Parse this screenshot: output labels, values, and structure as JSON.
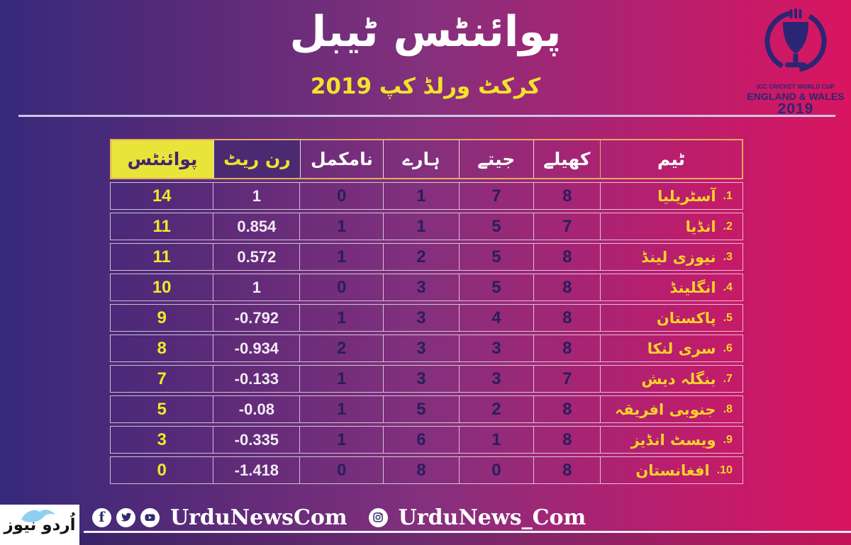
{
  "page": {
    "title": "پوائنٹس ٹیبل",
    "subtitle": "کرکٹ ورلڈ کپ 2019"
  },
  "icc_logo": {
    "line1": "ICC CRICKET WORLD CUP",
    "line2": "ENGLAND & WALES",
    "year": "2019"
  },
  "colors": {
    "gradient_left": "#36297b",
    "gradient_right": "#d91560",
    "header_border_gold": "#e3ac5c",
    "points_header_bg": "#e9e43a",
    "runrate_header_bg": "#4b2a71",
    "points_yellow": "#f2ea25",
    "team_yellow": "#f8d428",
    "number_navy": "#2a1d5c",
    "logo_navy": "#2b2673",
    "white": "#ffffff"
  },
  "table": {
    "headers": {
      "points": "پوائنٹس",
      "run_rate": "رن ریٹ",
      "no_result": "نامکمل",
      "lost": "ہارے",
      "won": "جیتے",
      "played": "کھیلے",
      "team": "ٹیم"
    },
    "rows": [
      {
        "rank": "1.",
        "team": "آسٹریلیا",
        "played": "8",
        "won": "7",
        "lost": "1",
        "no_result": "0",
        "run_rate": "1",
        "points": "14"
      },
      {
        "rank": "2.",
        "team": "انڈیا",
        "played": "7",
        "won": "5",
        "lost": "1",
        "no_result": "1",
        "run_rate": "0.854",
        "points": "11"
      },
      {
        "rank": "3.",
        "team": "نیوزی لینڈ",
        "played": "8",
        "won": "5",
        "lost": "2",
        "no_result": "1",
        "run_rate": "0.572",
        "points": "11"
      },
      {
        "rank": "4.",
        "team": "انگلینڈ",
        "played": "8",
        "won": "5",
        "lost": "3",
        "no_result": "0",
        "run_rate": "1",
        "points": "10"
      },
      {
        "rank": "5.",
        "team": "پاکستان",
        "played": "8",
        "won": "4",
        "lost": "3",
        "no_result": "1",
        "run_rate": "-0.792",
        "points": "9"
      },
      {
        "rank": "6.",
        "team": "سری لنکا",
        "played": "8",
        "won": "3",
        "lost": "3",
        "no_result": "2",
        "run_rate": "-0.934",
        "points": "8"
      },
      {
        "rank": "7.",
        "team": "بنگلہ دیش",
        "played": "7",
        "won": "3",
        "lost": "3",
        "no_result": "1",
        "run_rate": "-0.133",
        "points": "7"
      },
      {
        "rank": "8.",
        "team": "جنوبی افریقہ",
        "played": "8",
        "won": "2",
        "lost": "5",
        "no_result": "1",
        "run_rate": "-0.08",
        "points": "5"
      },
      {
        "rank": "9.",
        "team": "ویسٹ انڈیز",
        "played": "8",
        "won": "1",
        "lost": "6",
        "no_result": "1",
        "run_rate": "-0.335",
        "points": "3"
      },
      {
        "rank": "10.",
        "team": "افغانستان",
        "played": "8",
        "won": "0",
        "lost": "8",
        "no_result": "0",
        "run_rate": "-1.418",
        "points": "0"
      }
    ]
  },
  "footer": {
    "brand_logo_text": "اُردو نیوز",
    "facebook_glyph": "f",
    "social_handle": "UrduNewsCom",
    "instagram_handle": "UrduNews_Com"
  },
  "chart_data": {
    "type": "table",
    "title": "پوائنٹس ٹیبل",
    "subtitle": "کرکٹ ورلڈ کپ 2019",
    "columns": [
      "ٹیم",
      "کھیلے",
      "جیتے",
      "ہارے",
      "نامکمل",
      "رن ریٹ",
      "پوائنٹس"
    ],
    "rows": [
      [
        "آسٹریلیا",
        8,
        7,
        1,
        0,
        1,
        14
      ],
      [
        "انڈیا",
        7,
        5,
        1,
        1,
        0.854,
        11
      ],
      [
        "نیوزی لینڈ",
        8,
        5,
        2,
        1,
        0.572,
        11
      ],
      [
        "انگلینڈ",
        8,
        5,
        3,
        0,
        1,
        10
      ],
      [
        "پاکستان",
        8,
        4,
        3,
        1,
        -0.792,
        9
      ],
      [
        "سری لنکا",
        8,
        3,
        3,
        2,
        -0.934,
        8
      ],
      [
        "بنگلہ دیش",
        7,
        3,
        3,
        1,
        -0.133,
        7
      ],
      [
        "جنوبی افریقہ",
        8,
        2,
        5,
        1,
        -0.08,
        5
      ],
      [
        "ویسٹ انڈیز",
        8,
        1,
        6,
        1,
        -0.335,
        3
      ],
      [
        "افغانستان",
        8,
        0,
        8,
        0,
        -1.418,
        0
      ]
    ]
  }
}
